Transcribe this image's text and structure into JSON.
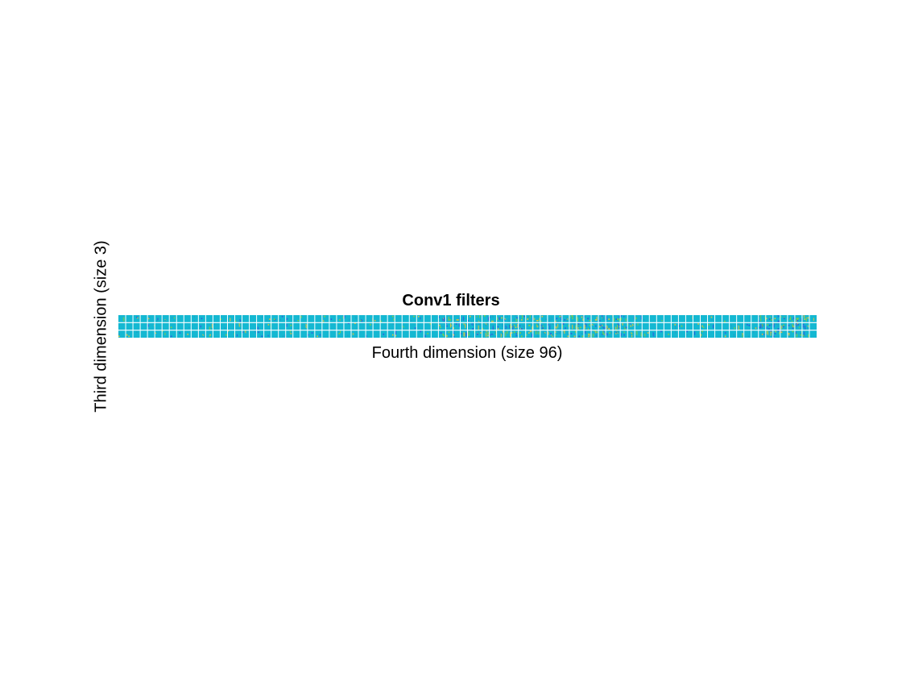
{
  "chart_data": {
    "type": "heatmap",
    "title": "Conv1 filters",
    "xlabel": "Fourth dimension (size 96)",
    "ylabel": "Third dimension (size 3)",
    "rows": 3,
    "cols": 96,
    "tile_resolution": 11,
    "colormap": "parula",
    "grid": true,
    "colors": {
      "base": "#14b8d2",
      "low": "#2e5fe0",
      "mid": "#1aa6c8",
      "high": "#7dd04a",
      "peak": "#d8c640",
      "separator": "#ffffff"
    },
    "content": "96 learned convolution kernels of the first layer (one column per filter), each shown for its 3 input channels (rows); most tiles are near-uniform with sparse edge-like structure"
  }
}
